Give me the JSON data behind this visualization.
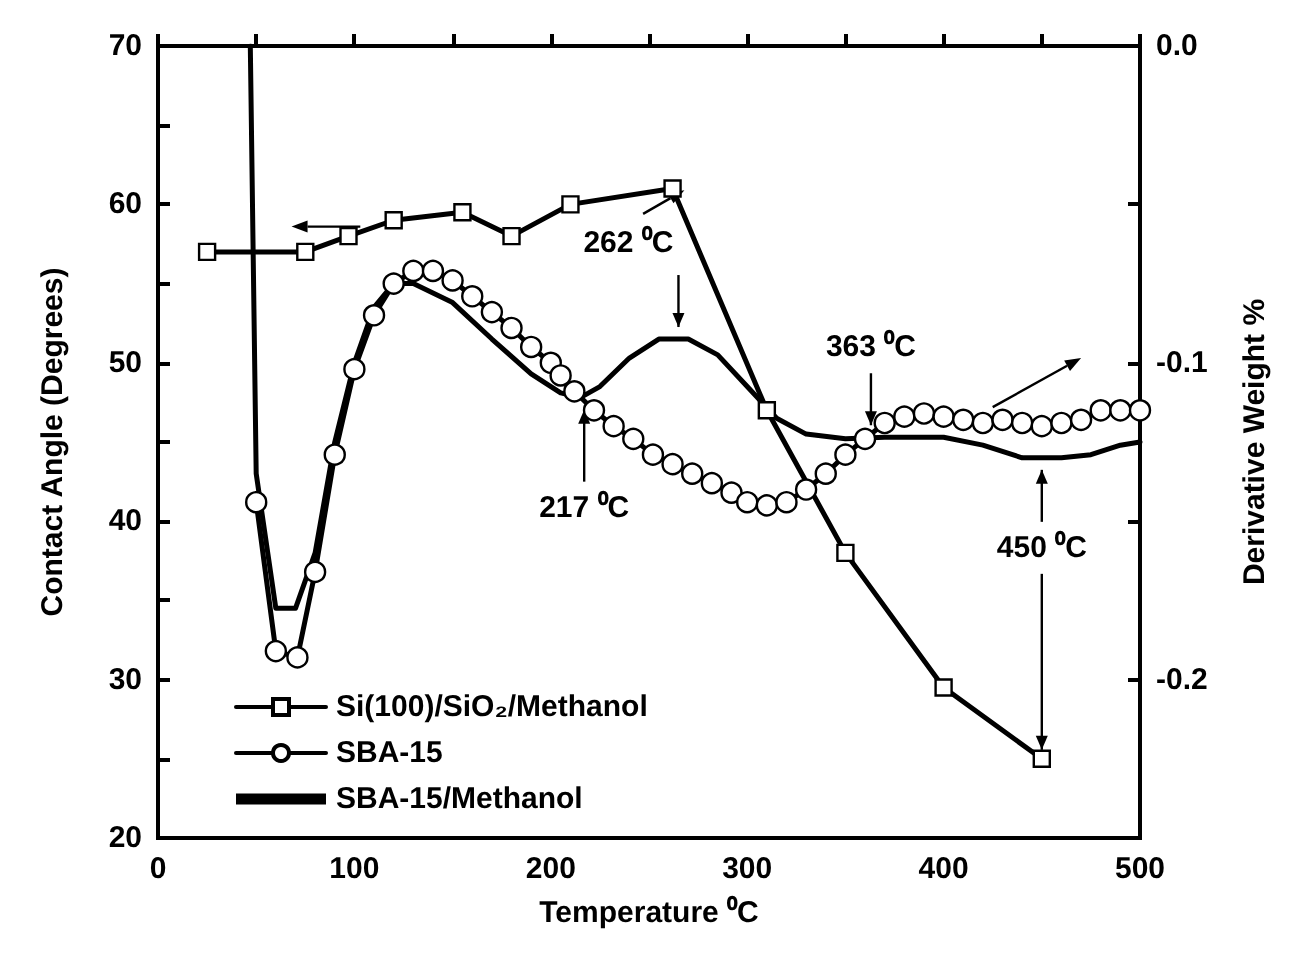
{
  "chart_data": {
    "type": "line",
    "xlabel": "Temperature ⁰C",
    "ylabel": "Contact Angle (Degrees)",
    "y2label": "Derivative Weight %",
    "xlim": [
      0,
      500
    ],
    "xticks": [
      0,
      {
        "value": 50,
        "label": null
      },
      100,
      {
        "value": 150,
        "label": null
      },
      200,
      {
        "value": 250,
        "label": null
      },
      300,
      {
        "value": 350,
        "label": null
      },
      400,
      {
        "value": 450,
        "label": null
      },
      500
    ],
    "ylim": [
      20,
      70
    ],
    "yticks": [
      20,
      {
        "value": 25,
        "label": null
      },
      30,
      {
        "value": 35,
        "label": null
      },
      40,
      {
        "value": 45,
        "label": null
      },
      50,
      {
        "value": 55,
        "label": null
      },
      60,
      {
        "value": 65,
        "label": null
      },
      70
    ],
    "y2lim": [
      -0.25,
      0
    ],
    "y2ticks": [
      {
        "value": -0.25,
        "label": null
      },
      {
        "value": -0.2,
        "label": "-0.2"
      },
      {
        "value": -0.15,
        "label": null
      },
      {
        "value": -0.1,
        "label": "-0.1"
      },
      {
        "value": -0.05,
        "label": null
      },
      {
        "value": 0,
        "label": "0.0"
      }
    ],
    "grid": false,
    "legend": "bottom left",
    "series": [
      {
        "name": "Si(100)/SiO₂/Methanol",
        "color": "#000000",
        "marker": "square",
        "x": [
          25,
          75,
          97,
          120,
          155,
          180,
          210,
          262,
          310,
          350,
          400,
          450
        ],
        "values": [
          57,
          57,
          58,
          59,
          59.5,
          58,
          60,
          61,
          47,
          38,
          29.5,
          25
        ]
      },
      {
        "name": "SBA-15",
        "color": "#000000",
        "marker": "circle",
        "axis": "y2",
        "x": [
          50,
          60,
          71,
          80,
          90,
          100,
          110,
          120,
          130,
          140,
          150,
          160,
          170,
          180,
          190,
          200,
          205,
          212,
          222,
          232,
          242,
          252,
          262,
          272,
          282,
          292,
          300,
          310,
          320,
          330,
          340,
          350,
          360,
          370,
          380,
          390,
          400,
          410,
          420,
          430,
          440,
          450,
          460,
          470,
          480,
          490,
          500
        ],
        "values": [
          -0.144,
          -0.191,
          -0.193,
          -0.166,
          -0.129,
          -0.102,
          -0.085,
          -0.075,
          -0.071,
          -0.071,
          -0.074,
          -0.079,
          -0.084,
          -0.089,
          -0.095,
          -0.1,
          -0.104,
          -0.109,
          -0.115,
          -0.12,
          -0.124,
          -0.129,
          -0.132,
          -0.135,
          -0.138,
          -0.141,
          -0.144,
          -0.145,
          -0.144,
          -0.14,
          -0.135,
          -0.129,
          -0.124,
          -0.119,
          -0.117,
          -0.116,
          -0.117,
          -0.118,
          -0.119,
          -0.118,
          -0.119,
          -0.12,
          -0.119,
          -0.118,
          -0.115,
          -0.115,
          -0.115
        ]
      },
      {
        "name": "SBA-15/Methanol",
        "color": "#000000",
        "marker": "none",
        "axis": "y2",
        "x": [
          47,
          50,
          60,
          70,
          80,
          90,
          100,
          110,
          120,
          130,
          150,
          170,
          190,
          205,
          215,
          225,
          240,
          255,
          270,
          285,
          300,
          315,
          330,
          350,
          370,
          400,
          420,
          440,
          460,
          475,
          490,
          500
        ],
        "values": [
          0,
          -0.135,
          -0.1775,
          -0.1775,
          -0.16,
          -0.125,
          -0.1,
          -0.0825,
          -0.075,
          -0.075,
          -0.081,
          -0.0925,
          -0.1035,
          -0.1095,
          -0.111,
          -0.1075,
          -0.0985,
          -0.0925,
          -0.0925,
          -0.0975,
          -0.1075,
          -0.1175,
          -0.1225,
          -0.124,
          -0.1235,
          -0.1235,
          -0.126,
          -0.13,
          -0.13,
          -0.129,
          -0.126,
          -0.125
        ]
      }
    ],
    "annotations": [
      {
        "text": "262 ⁰C",
        "x": 265,
        "y": 51.5
      },
      {
        "text": "217 ⁰C",
        "x": 217,
        "y": 47.8
      },
      {
        "text": "363 ⁰C",
        "x": 363,
        "y": 45.3
      },
      {
        "text": "450 ⁰C",
        "x": 450,
        "y": 44
      }
    ]
  }
}
